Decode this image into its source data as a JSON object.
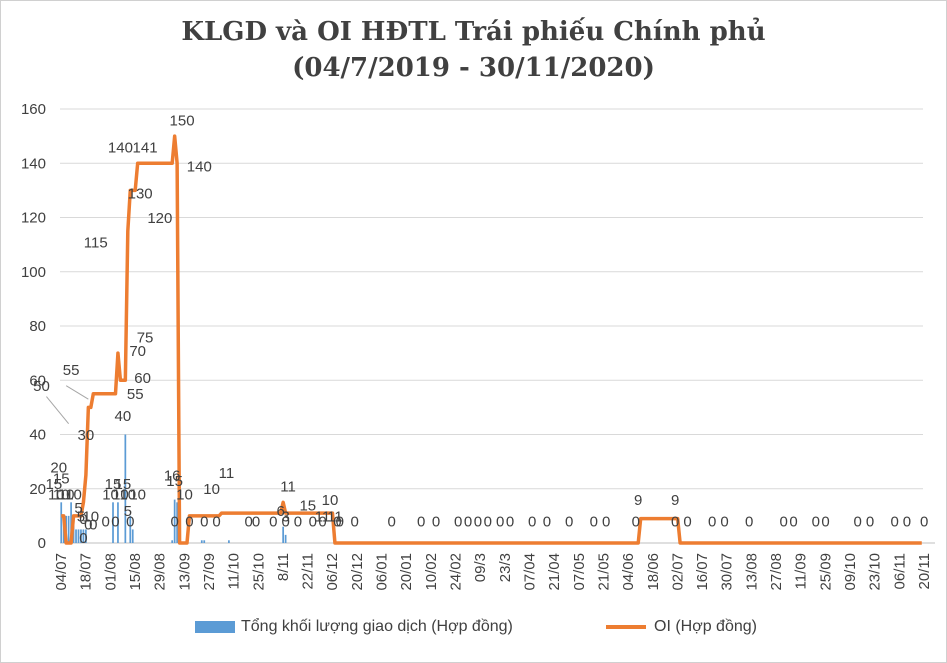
{
  "title_line1": "KLGD và OI HĐTL Trái phiếu Chính phủ",
  "title_line2": "(04/7/2019 - 30/11/2020)",
  "colors": {
    "bar": "#5b9bd5",
    "line": "#ed7d31",
    "grid": "#d9d9d9",
    "text": "#404040"
  },
  "chart_data": {
    "type": "bar+line",
    "title": "KLGD và OI HĐTL Trái phiếu Chính phủ (04/7/2019 - 30/11/2020)",
    "ylim": [
      0,
      160
    ],
    "yticks": [
      "0",
      "20",
      "40",
      "60",
      "80",
      "100",
      "120",
      "140",
      "160"
    ],
    "n_sessions": 350,
    "x_tick_labels": [
      "04/07",
      "18/07",
      "01/08",
      "15/08",
      "29/08",
      "13/09",
      "27/09",
      "11/10",
      "25/10",
      "8/11",
      "22/11",
      "06/12",
      "20/12",
      "06/01",
      "20/01",
      "10/02",
      "24/02",
      "09/3",
      "23/3",
      "07/04",
      "21/04",
      "07/05",
      "21/05",
      "04/06",
      "18/06",
      "02/07",
      "16/07",
      "30/07",
      "13/08",
      "27/08",
      "11/09",
      "25/09",
      "09/10",
      "23/10",
      "06/11",
      "20/11"
    ],
    "x_tick_sessions": [
      0,
      10,
      20,
      30,
      40,
      50,
      60,
      70,
      80,
      90,
      100,
      110,
      120,
      130,
      140,
      150,
      160,
      170,
      180,
      190,
      200,
      210,
      220,
      230,
      240,
      250,
      260,
      270,
      280,
      290,
      300,
      310,
      320,
      330,
      340,
      350
    ],
    "series": [
      {
        "name": "Tổng khối lượng giao dịch  (Hợp đồng)",
        "type": "bar",
        "points": [
          [
            0,
            15
          ],
          [
            1,
            10
          ],
          [
            2,
            10
          ],
          [
            3,
            10
          ],
          [
            4,
            15
          ],
          [
            5,
            10
          ],
          [
            6,
            5
          ],
          [
            7,
            5
          ],
          [
            8,
            5
          ],
          [
            9,
            5
          ],
          [
            10,
            5
          ],
          [
            21,
            15
          ],
          [
            23,
            15
          ],
          [
            26,
            40
          ],
          [
            28,
            10
          ],
          [
            29,
            5
          ],
          [
            45,
            1
          ],
          [
            46,
            16
          ],
          [
            47,
            15
          ],
          [
            57,
            1
          ],
          [
            58,
            1
          ],
          [
            68,
            1
          ],
          [
            90,
            6
          ],
          [
            91,
            3
          ]
        ]
      },
      {
        "name": "OI (Hợp đồng)",
        "type": "line",
        "points": [
          [
            0,
            10
          ],
          [
            1,
            10
          ],
          [
            2,
            0
          ],
          [
            4,
            0
          ],
          [
            5,
            10
          ],
          [
            8,
            10
          ],
          [
            9,
            15
          ],
          [
            10,
            25
          ],
          [
            11,
            50
          ],
          [
            12,
            50
          ],
          [
            13,
            55
          ],
          [
            22,
            55
          ],
          [
            23,
            70
          ],
          [
            24,
            60
          ],
          [
            26,
            60
          ],
          [
            27,
            115
          ],
          [
            28,
            130
          ],
          [
            30,
            130
          ],
          [
            31,
            140
          ],
          [
            45,
            140
          ],
          [
            46,
            150
          ],
          [
            47,
            140
          ],
          [
            48,
            0
          ],
          [
            51,
            0
          ],
          [
            52,
            10
          ],
          [
            64,
            10
          ],
          [
            65,
            11
          ],
          [
            89,
            11
          ],
          [
            90,
            15
          ],
          [
            91,
            11
          ],
          [
            110,
            11
          ],
          [
            111,
            0
          ],
          [
            234,
            0
          ],
          [
            235,
            9
          ],
          [
            250,
            9
          ],
          [
            251,
            0
          ],
          [
            349,
            0
          ]
        ]
      }
    ],
    "data_labels": [
      {
        "t": "20",
        "s": -1,
        "v": 26
      },
      {
        "t": "15",
        "s": -3,
        "v": 20
      },
      {
        "t": "15",
        "s": 0,
        "v": 22
      },
      {
        "t": "10",
        "s": -2,
        "v": 16
      },
      {
        "t": "10",
        "s": 0,
        "v": 16
      },
      {
        "t": "10",
        "s": 2,
        "v": 16
      },
      {
        "t": "10",
        "s": 5,
        "v": 16
      },
      {
        "t": "5",
        "s": 7,
        "v": 11
      },
      {
        "t": "5",
        "s": 8,
        "v": 8
      },
      {
        "t": "0",
        "s": 9,
        "v": 7
      },
      {
        "t": "10",
        "s": 12,
        "v": 8
      },
      {
        "t": "0",
        "s": 11,
        "v": 5
      },
      {
        "t": "0",
        "s": 13,
        "v": 5
      },
      {
        "t": "0",
        "s": 9,
        "v": 0
      },
      {
        "t": "50",
        "s": -8,
        "v": 56
      },
      {
        "t": "55",
        "s": 4,
        "v": 62
      },
      {
        "t": "30",
        "s": 10,
        "v": 38
      },
      {
        "t": "0",
        "s": 18,
        "v": 6
      },
      {
        "t": "15",
        "s": 21,
        "v": 20
      },
      {
        "t": "10",
        "s": 20,
        "v": 16
      },
      {
        "t": "0",
        "s": 22,
        "v": 6
      },
      {
        "t": "10",
        "s": 24,
        "v": 16
      },
      {
        "t": "15",
        "s": 25,
        "v": 20
      },
      {
        "t": "10",
        "s": 27,
        "v": 16
      },
      {
        "t": "5",
        "s": 27,
        "v": 10
      },
      {
        "t": "0",
        "s": 28,
        "v": 6
      },
      {
        "t": "10",
        "s": 31,
        "v": 16
      },
      {
        "t": "40",
        "s": 25,
        "v": 45
      },
      {
        "t": "55",
        "s": 30,
        "v": 53
      },
      {
        "t": "60",
        "s": 33,
        "v": 59
      },
      {
        "t": "70",
        "s": 31,
        "v": 69
      },
      {
        "t": "75",
        "s": 34,
        "v": 74
      },
      {
        "t": "115",
        "s": 14,
        "v": 109
      },
      {
        "t": "140",
        "s": 24,
        "v": 144
      },
      {
        "t": "141",
        "s": 34,
        "v": 144
      },
      {
        "t": "130",
        "s": 32,
        "v": 127
      },
      {
        "t": "120",
        "s": 40,
        "v": 118
      },
      {
        "t": "150",
        "s": 49,
        "v": 154
      },
      {
        "t": "140",
        "s": 56,
        "v": 137
      },
      {
        "t": "16",
        "s": 45,
        "v": 23
      },
      {
        "t": "15",
        "s": 46,
        "v": 21
      },
      {
        "t": "0",
        "s": 46,
        "v": 6
      },
      {
        "t": "10",
        "s": 50,
        "v": 16
      },
      {
        "t": "0",
        "s": 52,
        "v": 6
      },
      {
        "t": "0",
        "s": 58,
        "v": 6
      },
      {
        "t": "10",
        "s": 61,
        "v": 18
      },
      {
        "t": "0",
        "s": 63,
        "v": 6
      },
      {
        "t": "11",
        "s": 67,
        "v": 24
      },
      {
        "t": "0",
        "s": 76,
        "v": 6
      },
      {
        "t": "0",
        "s": 79,
        "v": 6
      },
      {
        "t": "0",
        "s": 86,
        "v": 6
      },
      {
        "t": "6",
        "s": 89,
        "v": 10
      },
      {
        "t": "11",
        "s": 92,
        "v": 19
      },
      {
        "t": "3",
        "s": 91,
        "v": 8
      },
      {
        "t": "0",
        "s": 91,
        "v": 6
      },
      {
        "t": "0",
        "s": 96,
        "v": 6
      },
      {
        "t": "15",
        "s": 100,
        "v": 12
      },
      {
        "t": "0",
        "s": 102,
        "v": 6
      },
      {
        "t": "0",
        "s": 106,
        "v": 6
      },
      {
        "t": "10",
        "s": 109,
        "v": 14
      },
      {
        "t": "0",
        "s": 112,
        "v": 6
      },
      {
        "t": "11",
        "s": 106,
        "v": 8
      },
      {
        "t": "11",
        "s": 111,
        "v": 8
      },
      {
        "t": "0",
        "s": 113,
        "v": 6
      },
      {
        "t": "0",
        "s": 119,
        "v": 6
      },
      {
        "t": "0",
        "s": 134,
        "v": 6
      },
      {
        "t": "0",
        "s": 146,
        "v": 6
      },
      {
        "t": "0",
        "s": 152,
        "v": 6
      },
      {
        "t": "0",
        "s": 161,
        "v": 6
      },
      {
        "t": "0",
        "s": 165,
        "v": 6
      },
      {
        "t": "0",
        "s": 169,
        "v": 6
      },
      {
        "t": "0",
        "s": 173,
        "v": 6
      },
      {
        "t": "0",
        "s": 178,
        "v": 6
      },
      {
        "t": "0",
        "s": 182,
        "v": 6
      },
      {
        "t": "0",
        "s": 191,
        "v": 6
      },
      {
        "t": "0",
        "s": 197,
        "v": 6
      },
      {
        "t": "0",
        "s": 206,
        "v": 6
      },
      {
        "t": "0",
        "s": 216,
        "v": 6
      },
      {
        "t": "0",
        "s": 221,
        "v": 6
      },
      {
        "t": "0",
        "s": 233,
        "v": 6
      },
      {
        "t": "9",
        "s": 234,
        "v": 14
      },
      {
        "t": "9",
        "s": 249,
        "v": 14
      },
      {
        "t": "0",
        "s": 249,
        "v": 6
      },
      {
        "t": "0",
        "s": 254,
        "v": 6
      },
      {
        "t": "0",
        "s": 264,
        "v": 6
      },
      {
        "t": "0",
        "s": 269,
        "v": 6
      },
      {
        "t": "0",
        "s": 279,
        "v": 6
      },
      {
        "t": "0",
        "s": 293,
        "v": 6
      },
      {
        "t": "0",
        "s": 297,
        "v": 6
      },
      {
        "t": "0",
        "s": 306,
        "v": 6
      },
      {
        "t": "0",
        "s": 310,
        "v": 6
      },
      {
        "t": "0",
        "s": 323,
        "v": 6
      },
      {
        "t": "0",
        "s": 328,
        "v": 6
      },
      {
        "t": "0",
        "s": 338,
        "v": 6
      },
      {
        "t": "0",
        "s": 343,
        "v": 6
      },
      {
        "t": "0",
        "s": 350,
        "v": 6
      }
    ]
  },
  "legend": {
    "bar_label": "Tổng khối lượng giao dịch  (Hợp đồng)",
    "line_label": "OI (Hợp đồng)"
  }
}
